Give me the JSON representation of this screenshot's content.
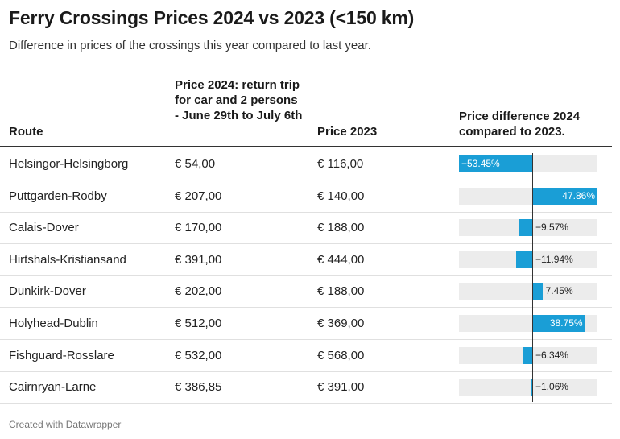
{
  "title": "Ferry Crossings Prices 2024 vs 2023 (<150 km)",
  "subtitle": "Difference in prices of the crossings this year compared to last year.",
  "columns": {
    "route": "Route",
    "price_2024": "Price 2024: return trip for car and 2 persons - June 29th to July 6th",
    "price_2023": "Price 2023",
    "difference": "Price difference 2024 compared to 2023."
  },
  "footer": "Created with Datawrapper",
  "colors": {
    "bar": "#1a9ed6",
    "bar_background": "#ececec",
    "text": "#222222"
  },
  "chart_data": {
    "type": "table",
    "bar_column": "difference",
    "bar_range": [
      -53.45,
      47.86
    ],
    "rows": [
      {
        "route": "Helsingor-Helsingborg",
        "price_2024": "€ 54,00",
        "price_2023": "€ 116,00",
        "difference": -53.45,
        "difference_label": "−53.45%"
      },
      {
        "route": "Puttgarden-Rodby",
        "price_2024": "€ 207,00",
        "price_2023": "€ 140,00",
        "difference": 47.86,
        "difference_label": "47.86%"
      },
      {
        "route": "Calais-Dover",
        "price_2024": "€ 170,00",
        "price_2023": "€ 188,00",
        "difference": -9.57,
        "difference_label": "−9.57%"
      },
      {
        "route": "Hirtshals-Kristiansand",
        "price_2024": "€ 391,00",
        "price_2023": "€ 444,00",
        "difference": -11.94,
        "difference_label": "−11.94%"
      },
      {
        "route": "Dunkirk-Dover",
        "price_2024": "€ 202,00",
        "price_2023": "€ 188,00",
        "difference": 7.45,
        "difference_label": "7.45%"
      },
      {
        "route": "Holyhead-Dublin",
        "price_2024": "€ 512,00",
        "price_2023": "€ 369,00",
        "difference": 38.75,
        "difference_label": "38.75%"
      },
      {
        "route": "Fishguard-Rosslare",
        "price_2024": "€ 532,00",
        "price_2023": "€ 568,00",
        "difference": -6.34,
        "difference_label": "−6.34%"
      },
      {
        "route": "Cairnryan-Larne",
        "price_2024": "€ 386,85",
        "price_2023": "€ 391,00",
        "difference": -1.06,
        "difference_label": "−1.06%"
      }
    ]
  }
}
